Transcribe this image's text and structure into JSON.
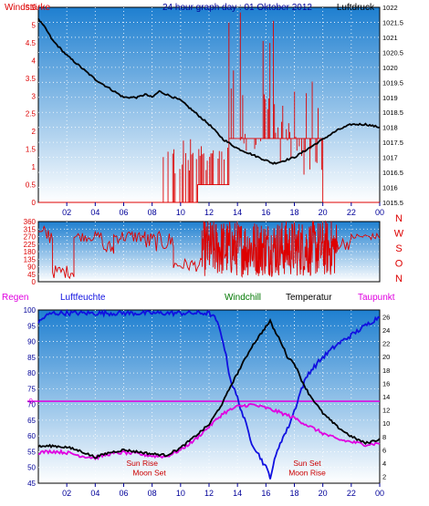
{
  "title": "24 hour graph day : 01 Oktober 2012",
  "colors": {
    "wind": "#dd0000",
    "pressure": "#000000",
    "humidity": "#1010e0",
    "temperature": "#000000",
    "dewpoint": "#e000e0",
    "windchill": "#007700",
    "regen": "#e000e0",
    "axis_blue": "#000099",
    "bg_top": "#1e7fd0",
    "bg_bottom": "#ffffff"
  },
  "x_ticks": [
    "02",
    "04",
    "06",
    "08",
    "10",
    "12",
    "14",
    "16",
    "18",
    "20",
    "22",
    "00"
  ],
  "chart_data": [
    {
      "type": "line",
      "name": "wind-pressure",
      "left_label": "Windstärke",
      "right_label": "Luftdruck",
      "left_ylim": [
        0,
        5.5
      ],
      "left_ticks": [
        "0",
        "0.5",
        "1",
        "1.5",
        "2",
        "2.5",
        "3",
        "3.5",
        "4",
        "4.5",
        "5",
        "5.5"
      ],
      "right_ylim": [
        1015.5,
        1022
      ],
      "right_ticks": [
        "1015.5",
        "1016",
        "1016.5",
        "1017",
        "1017.5",
        "1018",
        "1018.5",
        "1019",
        "1019.5",
        "1020",
        "1020.5",
        "1021",
        "1021.5",
        "1022"
      ],
      "x_hours_range": [
        0,
        24
      ],
      "pressure": {
        "x": [
          0,
          0.5,
          1,
          2,
          3,
          4,
          5,
          6,
          7,
          7.5,
          8,
          8.5,
          9,
          10,
          11,
          12,
          13,
          14,
          15,
          16,
          16.5,
          17,
          18,
          19,
          20,
          21,
          22,
          23,
          24
        ],
        "values": [
          1021.6,
          1021.3,
          1020.9,
          1020.4,
          1020.0,
          1019.6,
          1019.3,
          1019.0,
          1019.0,
          1019.1,
          1019.0,
          1019.2,
          1019.1,
          1018.9,
          1018.5,
          1018.1,
          1017.6,
          1017.3,
          1017.1,
          1016.9,
          1016.8,
          1016.85,
          1017.0,
          1017.3,
          1017.6,
          1017.9,
          1018.1,
          1018.1,
          1018.0
        ]
      },
      "wind_segments": [
        {
          "from": 8.7,
          "to": 11.2,
          "level": 0,
          "peaks": [
            1.8,
            1.5,
            1.8,
            1.2
          ]
        },
        {
          "from": 11.2,
          "to": 13.4,
          "level": 0.5,
          "peaks": [
            1.8,
            1.8,
            1.5,
            1.8,
            1.8
          ]
        },
        {
          "from": 13.4,
          "to": 14.2,
          "level": 1.8,
          "peaks": [
            5.5,
            5.5,
            3.5
          ]
        },
        {
          "from": 14.2,
          "to": 15.8,
          "level": 1.8,
          "peaks": [
            2.5,
            2.0,
            3.2,
            1.8
          ]
        },
        {
          "from": 15.8,
          "to": 16.6,
          "level": 1.8,
          "peaks": [
            5.5,
            3.5,
            4.0
          ]
        },
        {
          "from": 16.6,
          "to": 17.6,
          "level": 1.8,
          "peaks": [
            3.5,
            3.0,
            1.8
          ]
        },
        {
          "from": 17.6,
          "to": 20.0,
          "level": 1.8,
          "peaks": [
            3.5,
            2.0,
            1.8,
            1.2,
            1.8
          ]
        }
      ]
    },
    {
      "type": "line",
      "name": "wind-direction",
      "left_ylim": [
        0,
        360
      ],
      "left_ticks": [
        "0",
        "45",
        "90",
        "135",
        "180",
        "225",
        "270",
        "315",
        "360"
      ],
      "right_labels": [
        "N",
        "W",
        "S",
        "O",
        "N"
      ],
      "x_hours_range": [
        0,
        24
      ],
      "direction_segments": [
        {
          "from": 0,
          "to": 0.2,
          "base": 300,
          "spread": 0
        },
        {
          "from": 0.2,
          "to": 1.0,
          "base": 280,
          "spread": 60
        },
        {
          "from": 1.0,
          "to": 2.5,
          "base": 60,
          "spread": 40
        },
        {
          "from": 2.5,
          "to": 4.5,
          "base": 270,
          "spread": 30
        },
        {
          "from": 4.5,
          "to": 5.3,
          "base": 200,
          "spread": 50
        },
        {
          "from": 5.3,
          "to": 7.5,
          "base": 270,
          "spread": 40
        },
        {
          "from": 7.5,
          "to": 9.5,
          "base": 240,
          "spread": 60
        },
        {
          "from": 9.5,
          "to": 11.5,
          "base": 100,
          "spread": 40
        },
        {
          "from": 11.5,
          "to": 21.0,
          "base": 200,
          "spread": 170
        },
        {
          "from": 21.0,
          "to": 22.0,
          "base": 230,
          "spread": 40
        },
        {
          "from": 22.0,
          "to": 24.0,
          "base": 270,
          "spread": 20
        }
      ]
    },
    {
      "type": "line",
      "name": "humidity-temperature",
      "left_labels": [
        "Regen",
        "Luftfeuchte"
      ],
      "center_labels": [
        "Windchill",
        "Temperatur",
        "Taupunkt"
      ],
      "left_ylim": [
        45,
        100
      ],
      "left_ticks": [
        "45",
        "50",
        "55",
        "60",
        "65",
        "70",
        "75",
        "80",
        "85",
        "90",
        "95",
        "100"
      ],
      "right_ylim": [
        1,
        27
      ],
      "right_ticks": [
        "2",
        "4",
        "6",
        "8",
        "10",
        "12",
        "14",
        "16",
        "18",
        "20",
        "22",
        "24",
        "26"
      ],
      "regen_value": 0,
      "regen_label": "0",
      "x_hours_range": [
        0,
        24
      ],
      "humidity": {
        "x": [
          0,
          0.5,
          1,
          2,
          3,
          4,
          5,
          6,
          7,
          8,
          9,
          10,
          11,
          12,
          12.5,
          13,
          13.5,
          14,
          14.5,
          15,
          15.5,
          16,
          16.3,
          16.6,
          17,
          17.5,
          18,
          18.5,
          19,
          20,
          21,
          22,
          23,
          24
        ],
        "values": [
          96,
          98,
          99,
          99,
          99,
          99,
          99,
          99,
          99,
          99,
          99,
          99,
          99,
          99,
          97,
          90,
          78,
          72,
          65,
          58,
          54,
          50,
          47,
          52,
          58,
          62,
          68,
          75,
          80,
          85,
          89,
          92,
          95,
          98
        ]
      },
      "temperature": {
        "x": [
          0,
          1,
          2,
          3,
          4,
          5,
          6,
          7,
          8,
          9,
          10,
          11,
          12,
          12.5,
          13,
          13.5,
          14,
          14.5,
          15,
          15.5,
          16,
          16.3,
          16.7,
          17,
          17.5,
          18,
          18.5,
          19,
          20,
          21,
          22,
          23,
          24
        ],
        "values": [
          6.5,
          6.6,
          6.4,
          5.8,
          4.9,
          5.6,
          6.0,
          5.7,
          5.4,
          5.2,
          6.3,
          8.0,
          9.8,
          11.5,
          13.2,
          15.5,
          17.5,
          19.5,
          21.5,
          23.0,
          24.5,
          25.3,
          23.5,
          22.5,
          20.0,
          19.0,
          16.5,
          14.5,
          11.5,
          9.5,
          8.0,
          7.0,
          7.6
        ]
      },
      "dewpoint": {
        "x": [
          0,
          1,
          2,
          3,
          4,
          5,
          6,
          7,
          8,
          9,
          10,
          11,
          12,
          13,
          14,
          15,
          16,
          17,
          18,
          19,
          20,
          21,
          22,
          23,
          24
        ],
        "values": [
          5.6,
          5.8,
          5.6,
          5.1,
          4.8,
          5.4,
          5.6,
          5.4,
          5.1,
          5.0,
          6.0,
          7.5,
          9.5,
          11.5,
          12.5,
          12.8,
          12.3,
          11.6,
          10.8,
          9.6,
          8.5,
          7.6,
          7.2,
          6.8,
          7.0
        ]
      },
      "annotations": [
        {
          "text": "Sun Rise",
          "hour": 7.3,
          "value": 50.5,
          "color": "#cc0000"
        },
        {
          "text": "Moon Set",
          "hour": 7.8,
          "value": 47.5,
          "color": "#cc0000"
        },
        {
          "text": "Sun Set",
          "hour": 18.9,
          "value": 50.5,
          "color": "#cc0000"
        },
        {
          "text": "Moon Rise",
          "hour": 18.9,
          "value": 47.5,
          "color": "#cc0000"
        }
      ]
    }
  ]
}
